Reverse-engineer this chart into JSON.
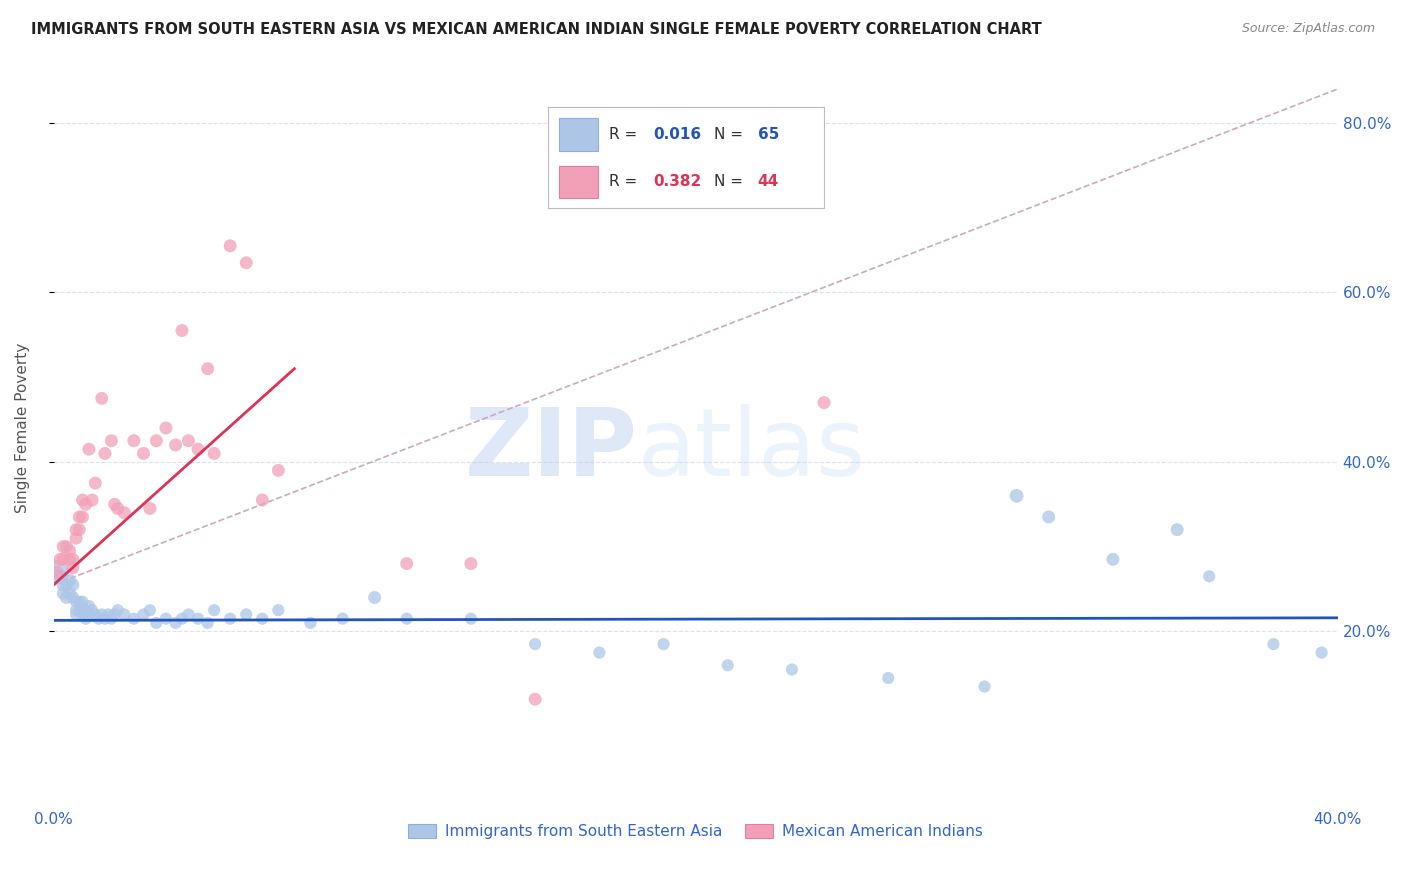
{
  "title": "IMMIGRANTS FROM SOUTH EASTERN ASIA VS MEXICAN AMERICAN INDIAN SINGLE FEMALE POVERTY CORRELATION CHART",
  "source": "Source: ZipAtlas.com",
  "xlabel_blue": "Immigrants from South Eastern Asia",
  "xlabel_pink": "Mexican American Indians",
  "ylabel": "Single Female Poverty",
  "watermark_zip": "ZIP",
  "watermark_atlas": "atlas",
  "x_min": 0.0,
  "x_max": 0.4,
  "y_min": 0.0,
  "y_max": 0.88,
  "blue_R": "0.016",
  "blue_N": "65",
  "pink_R": "0.382",
  "pink_N": "44",
  "blue_color": "#adc6e8",
  "pink_color": "#f2a0b8",
  "blue_line_color": "#2255bb",
  "pink_line_color": "#dd3355",
  "dashed_line_color": "#ccaabb",
  "grid_color": "#dde0ee",
  "title_color": "#222222",
  "source_color": "#888888",
  "label_color": "#3366cc",
  "blue_scatter_x": [
    0.001,
    0.002,
    0.003,
    0.003,
    0.004,
    0.004,
    0.005,
    0.005,
    0.006,
    0.006,
    0.007,
    0.007,
    0.007,
    0.008,
    0.008,
    0.009,
    0.009,
    0.01,
    0.01,
    0.011,
    0.011,
    0.012,
    0.013,
    0.014,
    0.015,
    0.016,
    0.017,
    0.018,
    0.019,
    0.02,
    0.022,
    0.025,
    0.028,
    0.03,
    0.032,
    0.035,
    0.038,
    0.04,
    0.042,
    0.045,
    0.048,
    0.05,
    0.055,
    0.06,
    0.065,
    0.07,
    0.08,
    0.09,
    0.1,
    0.11,
    0.13,
    0.15,
    0.17,
    0.19,
    0.21,
    0.23,
    0.26,
    0.29,
    0.3,
    0.31,
    0.33,
    0.35,
    0.36,
    0.38,
    0.395
  ],
  "blue_scatter_y": [
    0.27,
    0.265,
    0.255,
    0.245,
    0.255,
    0.24,
    0.26,
    0.245,
    0.255,
    0.24,
    0.235,
    0.225,
    0.22,
    0.235,
    0.225,
    0.235,
    0.22,
    0.225,
    0.215,
    0.23,
    0.22,
    0.225,
    0.22,
    0.215,
    0.22,
    0.215,
    0.22,
    0.215,
    0.22,
    0.225,
    0.22,
    0.215,
    0.22,
    0.225,
    0.21,
    0.215,
    0.21,
    0.215,
    0.22,
    0.215,
    0.21,
    0.225,
    0.215,
    0.22,
    0.215,
    0.225,
    0.21,
    0.215,
    0.24,
    0.215,
    0.215,
    0.185,
    0.175,
    0.185,
    0.16,
    0.155,
    0.145,
    0.135,
    0.36,
    0.335,
    0.285,
    0.32,
    0.265,
    0.185,
    0.175
  ],
  "blue_scatter_s": [
    300,
    100,
    80,
    80,
    80,
    80,
    80,
    80,
    80,
    80,
    70,
    70,
    70,
    70,
    70,
    70,
    70,
    70,
    70,
    70,
    70,
    70,
    70,
    70,
    70,
    70,
    70,
    70,
    70,
    70,
    70,
    70,
    70,
    70,
    70,
    70,
    70,
    70,
    70,
    70,
    70,
    70,
    70,
    70,
    70,
    70,
    70,
    70,
    80,
    70,
    70,
    70,
    70,
    70,
    70,
    70,
    70,
    70,
    90,
    80,
    80,
    80,
    70,
    70,
    70
  ],
  "pink_scatter_x": [
    0.001,
    0.002,
    0.003,
    0.003,
    0.004,
    0.005,
    0.005,
    0.006,
    0.006,
    0.007,
    0.007,
    0.008,
    0.008,
    0.009,
    0.009,
    0.01,
    0.011,
    0.012,
    0.013,
    0.015,
    0.016,
    0.018,
    0.019,
    0.02,
    0.022,
    0.025,
    0.028,
    0.03,
    0.032,
    0.035,
    0.038,
    0.04,
    0.042,
    0.045,
    0.048,
    0.05,
    0.055,
    0.06,
    0.065,
    0.07,
    0.11,
    0.13,
    0.15,
    0.24
  ],
  "pink_scatter_y": [
    0.27,
    0.285,
    0.3,
    0.285,
    0.3,
    0.295,
    0.285,
    0.285,
    0.275,
    0.32,
    0.31,
    0.335,
    0.32,
    0.355,
    0.335,
    0.35,
    0.415,
    0.355,
    0.375,
    0.475,
    0.41,
    0.425,
    0.35,
    0.345,
    0.34,
    0.425,
    0.41,
    0.345,
    0.425,
    0.44,
    0.42,
    0.555,
    0.425,
    0.415,
    0.51,
    0.41,
    0.655,
    0.635,
    0.355,
    0.39,
    0.28,
    0.28,
    0.12,
    0.47
  ],
  "pink_scatter_s": [
    80,
    80,
    80,
    80,
    80,
    80,
    80,
    80,
    80,
    80,
    80,
    80,
    80,
    80,
    80,
    80,
    80,
    80,
    80,
    80,
    80,
    80,
    80,
    80,
    80,
    80,
    80,
    80,
    80,
    80,
    80,
    80,
    80,
    80,
    80,
    80,
    80,
    80,
    80,
    80,
    80,
    80,
    80,
    80
  ],
  "blue_trendline_x": [
    0.0,
    0.4
  ],
  "blue_trendline_y": [
    0.213,
    0.216
  ],
  "pink_trendline_x": [
    0.0,
    0.075
  ],
  "pink_trendline_y": [
    0.255,
    0.51
  ],
  "dashed_trendline_x": [
    0.0,
    0.4
  ],
  "dashed_trendline_y": [
    0.255,
    0.84
  ]
}
